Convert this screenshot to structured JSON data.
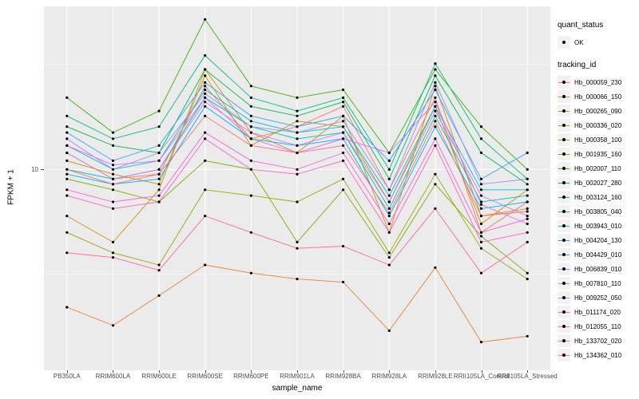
{
  "figure": {
    "background": "#FFFFFF",
    "panel_background": "#EBEBEB",
    "grid_color": "#FFFFFF",
    "tick_text_color": "#4D4D4D",
    "point_color": "#000000"
  },
  "axes": {
    "x_title": "sample_name",
    "y_title": "FPKM + 1",
    "y_tick_labels": [
      "10"
    ]
  },
  "legend": {
    "quant_status_title": "quant_status",
    "quant_status_items": [
      {
        "label": "OK"
      }
    ],
    "tracking_title": "tracking_id"
  },
  "chart_data": {
    "type": "line",
    "x_type": "categorical",
    "y_scale": "log10",
    "ylim": [
      1.1,
      60
    ],
    "y_major_ticks": [
      10
    ],
    "title": "",
    "xlabel": "sample_name",
    "ylabel": "FPKM + 1",
    "legend_position": "right",
    "grid": true,
    "marker": "point",
    "marker_color": "#000000",
    "categories": [
      "PB350LA",
      "RRIM600LA",
      "RRIM600LE",
      "RRIM600SE",
      "RRIM600PE",
      "RRIM901LA",
      "RRIM928BA",
      "RRIM928LA",
      "RRIM928LE",
      "RRII105LA_Control",
      "RRII105LA_Stressed"
    ],
    "series": [
      {
        "name": "Hb_000059_230",
        "color": "#F8766D",
        "quant_status": "OK",
        "values": [
          12,
          9,
          9.5,
          25,
          14,
          16,
          20,
          8,
          22,
          5,
          7
        ]
      },
      {
        "name": "Hb_000066_150",
        "color": "#EA8331",
        "quant_status": "OK",
        "values": [
          2.2,
          1.8,
          2.5,
          3.5,
          3.2,
          3.0,
          2.9,
          1.7,
          3.4,
          1.5,
          1.6
        ]
      },
      {
        "name": "Hb_000265_090",
        "color": "#D89000",
        "quant_status": "OK",
        "values": [
          6,
          4.5,
          8,
          30,
          15,
          12,
          18,
          5,
          25,
          6,
          6.5
        ]
      },
      {
        "name": "Hb_000336_020",
        "color": "#C09B00",
        "quant_status": "OK",
        "values": [
          11,
          9.5,
          8.5,
          28,
          13,
          17,
          16,
          7,
          20,
          5.5,
          8
        ]
      },
      {
        "name": "Hb_000358_100",
        "color": "#A3A500",
        "quant_status": "OK",
        "values": [
          5,
          4,
          3.5,
          8,
          7.5,
          7,
          9,
          4,
          9.5,
          4.2,
          3
        ]
      },
      {
        "name": "Hb_001935_160",
        "color": "#7CAE00",
        "quant_status": "OK",
        "values": [
          9,
          8,
          7,
          11,
          10,
          4.5,
          8,
          3.8,
          8.5,
          4.8,
          3.2
        ]
      },
      {
        "name": "Hb_002007_110",
        "color": "#39B600",
        "quant_status": "OK",
        "values": [
          22,
          15,
          19,
          52,
          25,
          22,
          24,
          12,
          30,
          16,
          10
        ]
      },
      {
        "name": "Hb_002027_280",
        "color": "#00BB4E",
        "quant_status": "OK",
        "values": [
          16,
          13,
          12,
          30,
          20,
          18,
          21,
          9,
          28,
          12,
          8.5
        ]
      },
      {
        "name": "Hb_003124_160",
        "color": "#00C081",
        "quant_status": "OK",
        "values": [
          18,
          14,
          16,
          35,
          22,
          19,
          22,
          10,
          32,
          14,
          9
        ]
      },
      {
        "name": "Hb_003805_040",
        "color": "#00C0AF",
        "quant_status": "OK",
        "values": [
          10,
          9,
          10,
          22,
          16,
          14,
          15,
          6.5,
          18,
          7,
          7.5
        ]
      },
      {
        "name": "Hb_003943_010",
        "color": "#00BCD8",
        "quant_status": "OK",
        "values": [
          13,
          10,
          11,
          24,
          17,
          15,
          16,
          7.5,
          20,
          8,
          8
        ]
      },
      {
        "name": "Hb_004204_130",
        "color": "#00B0F6",
        "quant_status": "OK",
        "values": [
          9.5,
          8.5,
          9,
          20,
          14,
          13,
          14,
          6,
          16,
          6.5,
          7
        ]
      },
      {
        "name": "Hb_004429_010",
        "color": "#35A2FF",
        "quant_status": "OK",
        "values": [
          15,
          11,
          13,
          26,
          18,
          16,
          18,
          11,
          24,
          9,
          12
        ]
      },
      {
        "name": "Hb_006839_010",
        "color": "#9590FF",
        "quant_status": "OK",
        "values": [
          14,
          10,
          12,
          23,
          16,
          15,
          17,
          8,
          26,
          8.5,
          9
        ]
      },
      {
        "name": "Hb_007810_110",
        "color": "#C77CFF",
        "quant_status": "OK",
        "values": [
          12,
          9,
          10,
          21,
          15,
          13,
          15,
          7,
          19,
          7.5,
          6
        ]
      },
      {
        "name": "Hb_009252_050",
        "color": "#E76BF3",
        "quant_status": "OK",
        "values": [
          13,
          10.5,
          11,
          22,
          14,
          12,
          14,
          12,
          21,
          6.8,
          5.5
        ]
      },
      {
        "name": "Hb_011174_020",
        "color": "#FA62DB",
        "quant_status": "OK",
        "values": [
          8,
          7,
          7.5,
          15,
          11,
          10,
          12,
          5.5,
          14,
          5,
          5.8
        ]
      },
      {
        "name": "Hb_012055_110",
        "color": "#FF61C7",
        "quant_status": "OK",
        "values": [
          7.5,
          6.5,
          7,
          14,
          10,
          9.5,
          11,
          5,
          13,
          4.5,
          5
        ]
      },
      {
        "name": "Hb_133702_020",
        "color": "#FF689E",
        "quant_status": "OK",
        "values": [
          4,
          3.8,
          3.3,
          6,
          5,
          4.2,
          4.3,
          3.5,
          6.5,
          3.2,
          4.5
        ]
      },
      {
        "name": "Hb_134362_010",
        "color": "#FD6F86",
        "quant_status": "OK",
        "values": [
          10,
          8.5,
          9.5,
          18,
          13,
          12,
          13,
          6.2,
          17,
          6,
          6.3
        ]
      }
    ]
  }
}
